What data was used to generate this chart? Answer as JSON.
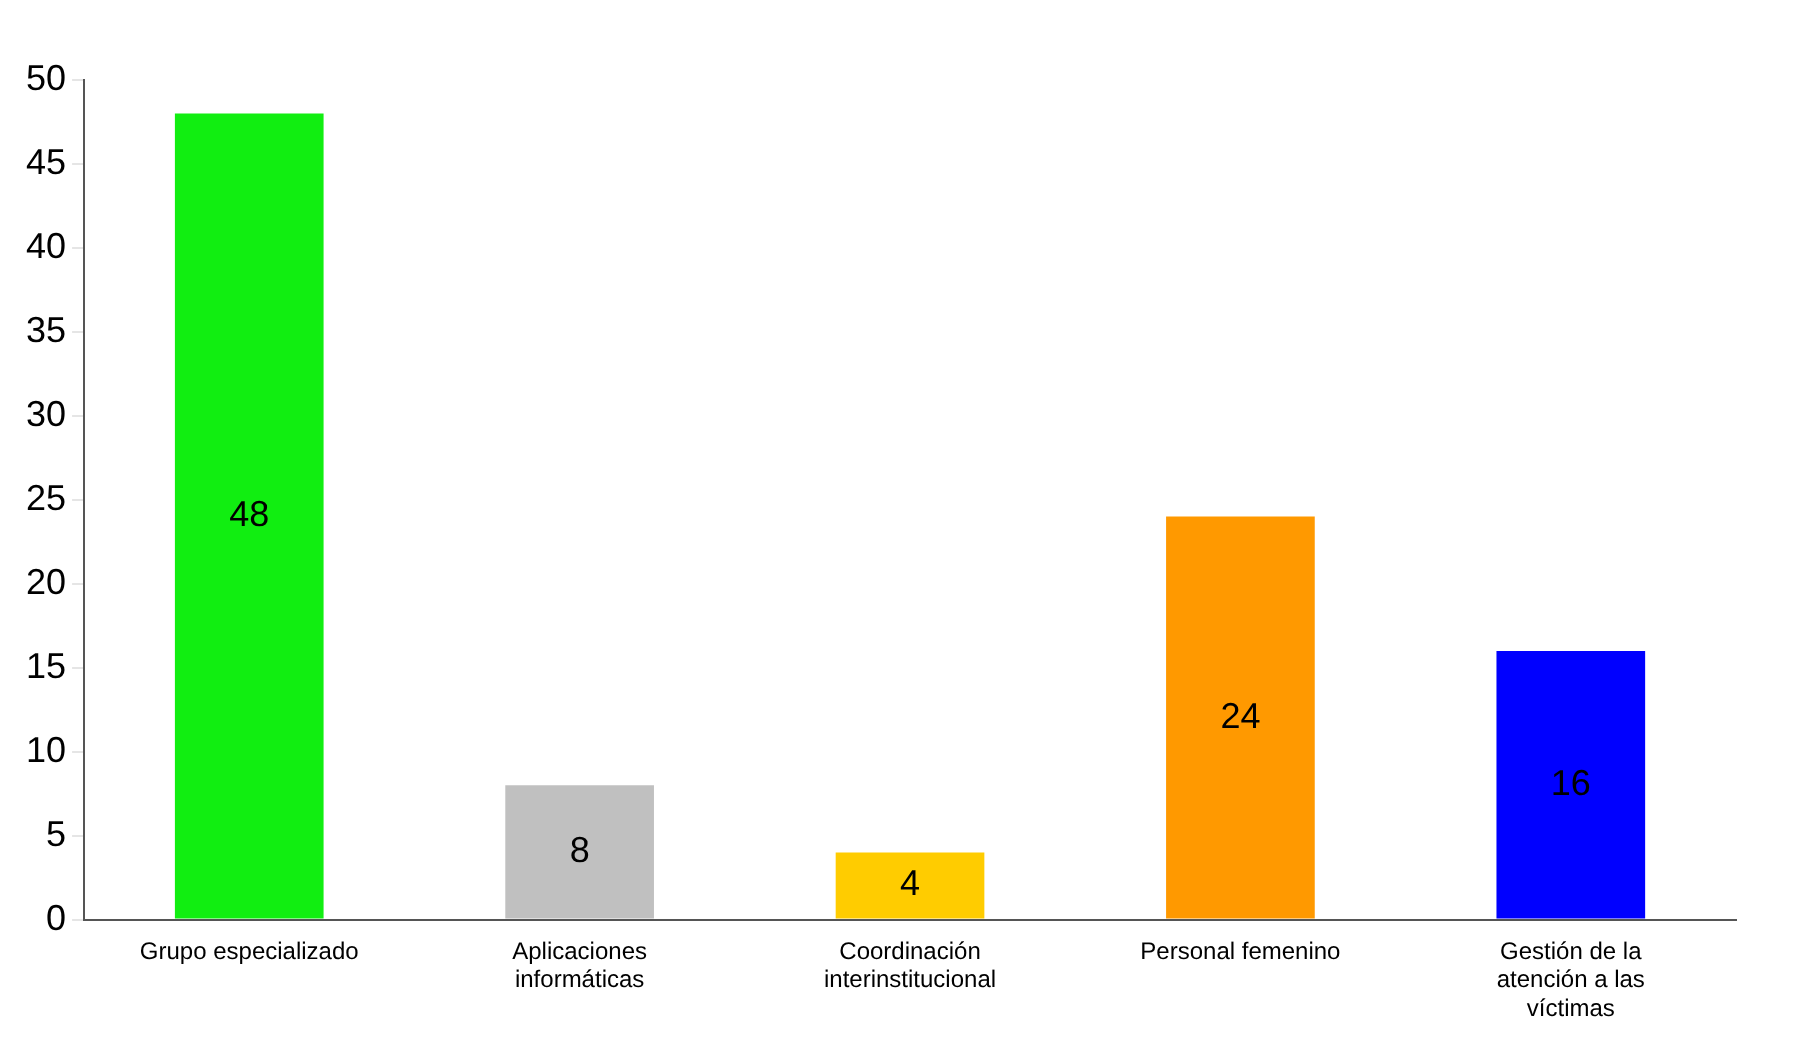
{
  "chart_data": {
    "type": "bar",
    "categories": [
      "Grupo especializado",
      "Aplicaciones informáticas",
      "Coordinación interinstitucional",
      "Personal femenino",
      "Gestión de la atención a las víctimas"
    ],
    "values": [
      48,
      8,
      4,
      24,
      16
    ],
    "colors": [
      "#11ee11",
      "#c0c0c0",
      "#ffcc00",
      "#ff9900",
      "#0000ff"
    ],
    "ylim": [
      0,
      50
    ],
    "yticks": [
      0,
      5,
      10,
      15,
      20,
      25,
      30,
      35,
      40,
      45,
      50
    ],
    "grid": false,
    "data_labels": true
  }
}
